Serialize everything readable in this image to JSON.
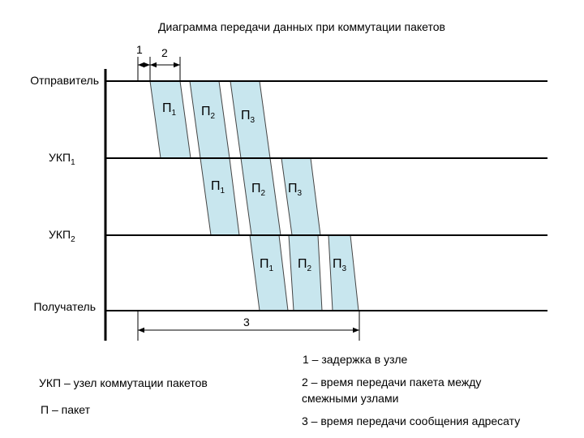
{
  "title": "Диаграмма передачи данных при коммутации пакетов",
  "markers": [
    "1",
    "2",
    "3"
  ],
  "rows": [
    {
      "label": "Отправитель"
    },
    {
      "label": "УКП",
      "sub": "1"
    },
    {
      "label": "УКП",
      "sub": "2"
    },
    {
      "label": "Получатель"
    }
  ],
  "packets": [
    [
      {
        "label": "П",
        "sub": "1"
      },
      {
        "label": "П",
        "sub": "2"
      },
      {
        "label": "П",
        "sub": "3"
      }
    ],
    [
      {
        "label": "П",
        "sub": "1"
      },
      {
        "label": "П",
        "sub": "2"
      },
      {
        "label": "П",
        "sub": "3"
      }
    ],
    [
      {
        "label": "П",
        "sub": "1"
      },
      {
        "label": "П",
        "sub": "2"
      },
      {
        "label": "П",
        "sub": "3"
      }
    ]
  ],
  "legend": {
    "item1": "1 – задержка в узле",
    "item2": [
      "2 – время передачи пакета между",
      "смежными узлами"
    ],
    "item3": "3 – время передачи сообщения адресату",
    "ukp": "УКП – узел коммутации пакетов",
    "p": "П – пакет"
  }
}
